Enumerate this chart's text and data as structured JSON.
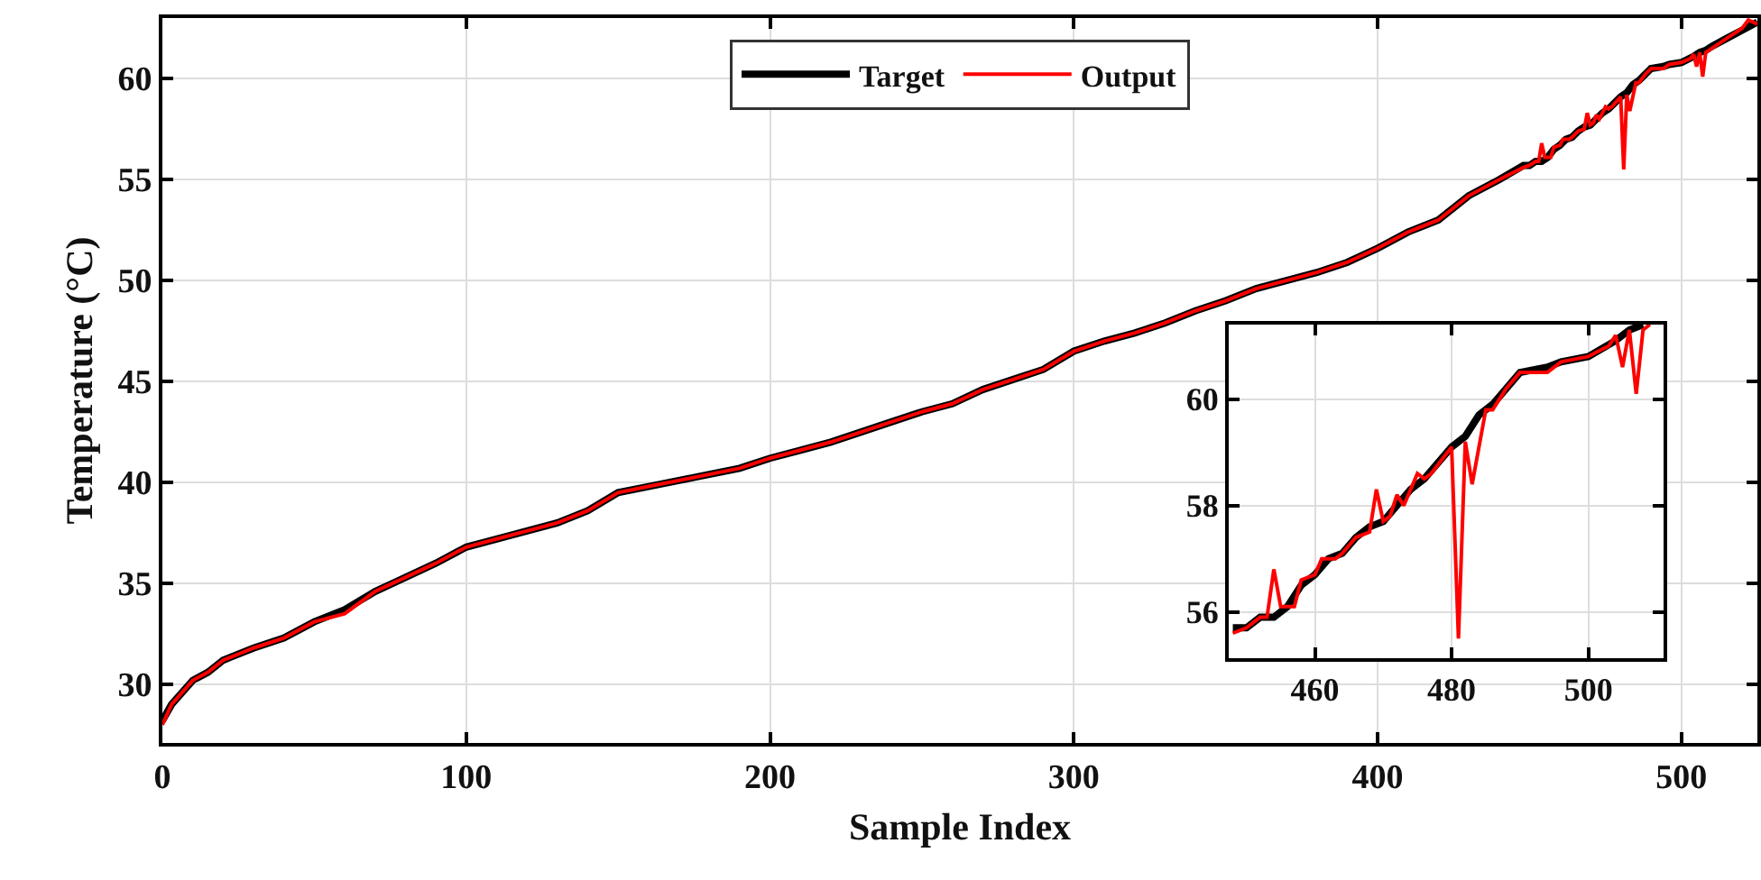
{
  "chart_data": [
    {
      "type": "line",
      "xlabel": "Sample Index",
      "ylabel": "Temperature (°C)",
      "xlim": [
        0,
        525
      ],
      "ylim": [
        27.1,
        63
      ],
      "xticks": [
        0,
        100,
        200,
        300,
        400,
        500
      ],
      "yticks": [
        30,
        35,
        40,
        45,
        50,
        55,
        60
      ],
      "grid": true,
      "legend": "top",
      "line_style": "solid",
      "series": [
        {
          "name": "Target",
          "color": "#000000",
          "x": [
            0,
            3,
            10,
            15,
            20,
            30,
            40,
            50,
            60,
            70,
            80,
            90,
            100,
            110,
            120,
            130,
            140,
            150,
            160,
            170,
            180,
            190,
            200,
            210,
            220,
            230,
            240,
            250,
            260,
            270,
            280,
            290,
            300,
            310,
            320,
            330,
            340,
            350,
            360,
            370,
            380,
            390,
            400,
            410,
            420,
            430,
            440,
            448,
            450,
            452,
            454,
            456,
            458,
            460,
            462,
            464,
            466,
            468,
            470,
            472,
            474,
            476,
            478,
            480,
            482,
            484,
            486,
            488,
            490,
            494,
            496,
            500,
            504,
            506,
            508,
            510,
            515,
            520,
            525
          ],
          "values": [
            28.2,
            29.0,
            30.2,
            30.6,
            31.2,
            31.8,
            32.3,
            33.1,
            33.7,
            34.6,
            35.3,
            36.0,
            36.8,
            37.2,
            37.6,
            38.0,
            38.6,
            39.5,
            39.8,
            40.1,
            40.4,
            40.7,
            41.2,
            41.6,
            42.0,
            42.5,
            43.0,
            43.5,
            43.9,
            44.6,
            45.1,
            45.6,
            46.5,
            47.0,
            47.4,
            47.9,
            48.5,
            49.0,
            49.6,
            50.0,
            50.4,
            50.9,
            51.6,
            52.4,
            53.0,
            54.2,
            55.0,
            55.7,
            55.7,
            55.9,
            55.9,
            56.1,
            56.5,
            56.7,
            57.0,
            57.1,
            57.4,
            57.6,
            57.7,
            58.0,
            58.3,
            58.5,
            58.8,
            59.1,
            59.3,
            59.7,
            59.9,
            60.2,
            60.5,
            60.6,
            60.7,
            60.8,
            61.1,
            61.3,
            61.4,
            61.6,
            62.0,
            62.4,
            62.8
          ]
        },
        {
          "name": "Output",
          "color": "#ff0000",
          "x": [
            0,
            3,
            10,
            15,
            20,
            30,
            40,
            50,
            60,
            70,
            80,
            90,
            100,
            110,
            120,
            130,
            140,
            150,
            160,
            170,
            180,
            190,
            200,
            210,
            220,
            230,
            240,
            250,
            260,
            270,
            280,
            290,
            300,
            310,
            320,
            330,
            340,
            350,
            360,
            370,
            380,
            390,
            400,
            410,
            420,
            430,
            440,
            448,
            450,
            452,
            453,
            454,
            455,
            457,
            458,
            460,
            461,
            463,
            464,
            466,
            468,
            469,
            470,
            471,
            472,
            473,
            475,
            476,
            477,
            480,
            481,
            482,
            483,
            485,
            486,
            488,
            490,
            494,
            496,
            500,
            503,
            504,
            505,
            506,
            507,
            508,
            509,
            515,
            520,
            522,
            525
          ],
          "values": [
            28.0,
            29.0,
            30.2,
            30.6,
            31.2,
            31.8,
            32.3,
            33.1,
            33.5,
            34.6,
            35.3,
            36.0,
            36.8,
            37.2,
            37.6,
            38.0,
            38.6,
            39.5,
            39.8,
            40.1,
            40.4,
            40.7,
            41.2,
            41.6,
            42.0,
            42.5,
            43.0,
            43.5,
            43.9,
            44.6,
            45.1,
            45.6,
            46.5,
            47.0,
            47.4,
            47.9,
            48.5,
            49.0,
            49.6,
            50.0,
            50.4,
            50.9,
            51.6,
            52.4,
            53.0,
            54.2,
            55.0,
            55.6,
            55.7,
            55.9,
            55.9,
            56.8,
            56.1,
            56.1,
            56.6,
            56.7,
            57.0,
            57.0,
            57.1,
            57.4,
            57.5,
            58.3,
            57.7,
            57.8,
            58.2,
            58.0,
            58.6,
            58.5,
            58.6,
            59.1,
            55.5,
            59.2,
            58.4,
            59.8,
            59.8,
            60.2,
            60.5,
            60.5,
            60.7,
            60.8,
            61.0,
            61.2,
            60.6,
            61.3,
            60.1,
            61.3,
            61.4,
            62.0,
            62.5,
            62.9,
            62.7
          ]
        }
      ]
    },
    {
      "type": "line",
      "xlim": [
        447.4,
        511
      ],
      "ylim": [
        55.13,
        61.4
      ],
      "xticks": [
        460,
        480,
        500
      ],
      "yticks": [
        56,
        58,
        60
      ],
      "grid": true,
      "line_style": "solid",
      "series": [
        {
          "color": "#000000",
          "x": [
            448,
            450,
            452,
            454,
            456,
            458,
            460,
            462,
            464,
            466,
            468,
            470,
            472,
            474,
            476,
            478,
            480,
            482,
            484,
            486,
            488,
            490,
            494,
            496,
            500,
            504,
            506,
            508
          ],
          "values": [
            55.7,
            55.7,
            55.9,
            55.9,
            56.1,
            56.5,
            56.7,
            57.0,
            57.1,
            57.4,
            57.6,
            57.7,
            58.0,
            58.3,
            58.5,
            58.8,
            59.1,
            59.3,
            59.7,
            59.9,
            60.2,
            60.5,
            60.6,
            60.7,
            60.8,
            61.1,
            61.3,
            61.4
          ]
        },
        {
          "color": "#ff0000",
          "x": [
            448,
            450,
            452,
            453,
            454,
            455,
            457,
            458,
            460,
            461,
            463,
            464,
            466,
            468,
            469,
            470,
            471,
            472,
            473,
            475,
            476,
            477,
            480,
            481,
            482,
            483,
            485,
            486,
            488,
            490,
            494,
            496,
            500,
            503,
            504,
            505,
            506,
            507,
            508,
            509
          ],
          "values": [
            55.6,
            55.7,
            55.9,
            55.9,
            56.8,
            56.1,
            56.1,
            56.6,
            56.7,
            57.0,
            57.0,
            57.1,
            57.4,
            57.5,
            58.3,
            57.7,
            57.8,
            58.2,
            58.0,
            58.6,
            58.5,
            58.6,
            59.1,
            55.5,
            59.2,
            58.4,
            59.8,
            59.8,
            60.2,
            60.5,
            60.5,
            60.7,
            60.8,
            61.0,
            61.2,
            60.6,
            61.3,
            60.1,
            61.3,
            61.4
          ]
        }
      ]
    }
  ]
}
